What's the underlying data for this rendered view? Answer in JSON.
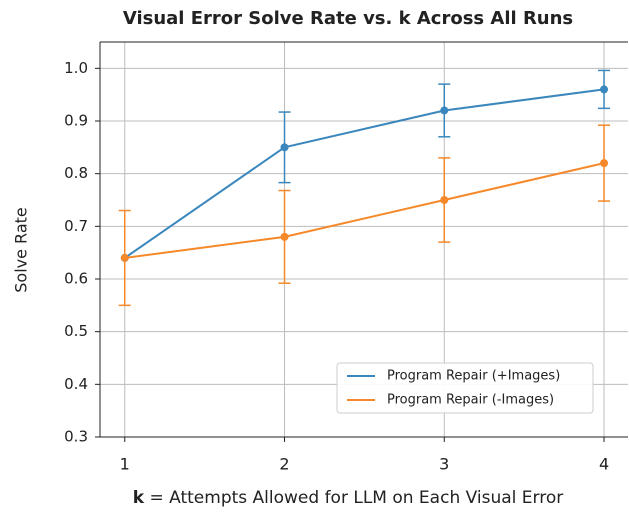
{
  "chart_data": {
    "type": "line",
    "title": "Visual Error Solve Rate vs. k Across All Runs",
    "xlabel": [
      "k",
      "= Attempts Allowed for LLM on Each Visual Error"
    ],
    "ylabel": "Solve Rate",
    "x": [
      1,
      2,
      3,
      4
    ],
    "series": [
      {
        "name": "Program Repair (+Images)",
        "color": "#3a87bd",
        "values": [
          0.64,
          0.85,
          0.92,
          0.96
        ],
        "errors": [
          null,
          0.067,
          0.05,
          0.036
        ]
      },
      {
        "name": "Program Repair (-Images)",
        "color": "#f5892a",
        "values": [
          0.64,
          0.68,
          0.75,
          0.82
        ],
        "errors": [
          0.09,
          0.088,
          0.08,
          0.072
        ]
      }
    ],
    "xlim": [
      0.845,
      4.15
    ],
    "xticks": [
      1,
      2,
      3,
      4
    ],
    "ylim": [
      0.3,
      1.05
    ],
    "yticks": [
      0.3,
      0.4,
      0.5,
      0.6,
      0.7,
      0.8,
      0.9,
      {
        "value": 1,
        "label": "1.0"
      }
    ],
    "grid": true,
    "legend": "lower right"
  }
}
